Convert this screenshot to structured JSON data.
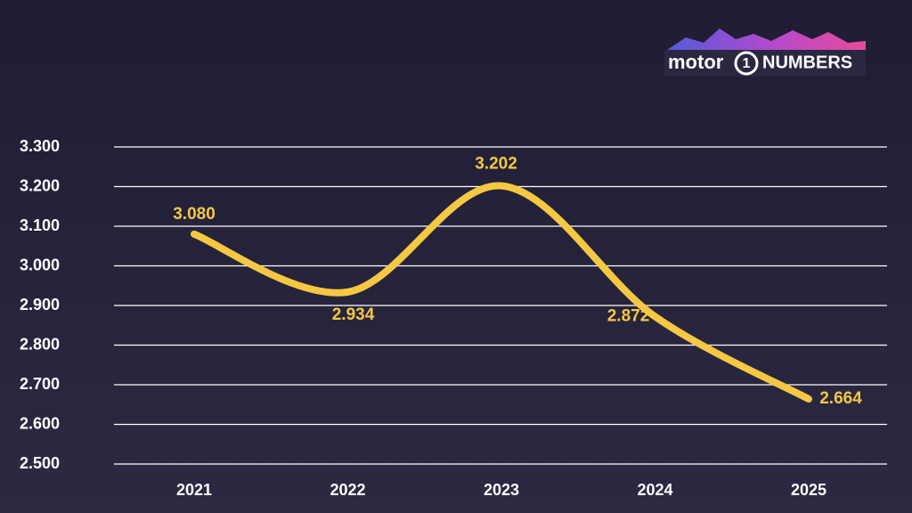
{
  "logo": [
    "motor",
    "1",
    "NUMBERS"
  ],
  "chart_data": {
    "type": "line",
    "categories": [
      "2021",
      "2022",
      "2023",
      "2024",
      "2025"
    ],
    "series": [
      {
        "color": "#f4c842",
        "values": [
          3080,
          2934,
          3202,
          2872,
          2664
        ],
        "value_labels": [
          "3.080",
          "2.934",
          "3.202",
          "2.872",
          "2.664"
        ]
      }
    ],
    "ylim": [
      2500,
      3300
    ],
    "yticks": [
      {
        "value": 2500,
        "label": "2.500"
      },
      {
        "value": 2600,
        "label": "2.600"
      },
      {
        "value": 2700,
        "label": "2.700"
      },
      {
        "value": 2800,
        "label": "2.800"
      },
      {
        "value": 2900,
        "label": "2.900"
      },
      {
        "value": 3000,
        "label": "3.000"
      },
      {
        "value": 3100,
        "label": "3.100"
      },
      {
        "value": 3200,
        "label": "3.200"
      },
      {
        "value": 3300,
        "label": "3.300"
      }
    ],
    "grid": true
  }
}
